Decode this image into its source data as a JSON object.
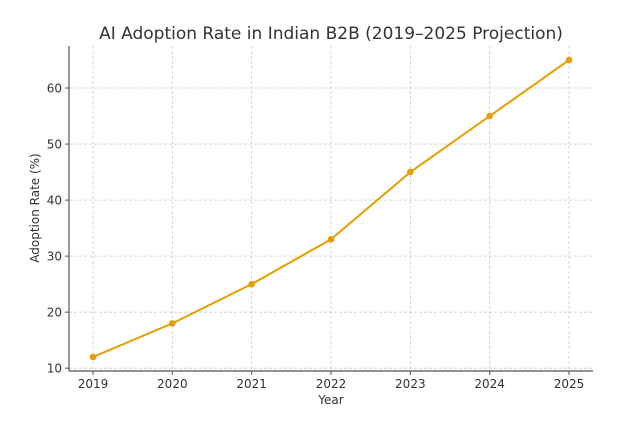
{
  "chart_data": {
    "type": "line",
    "title": "AI Adoption Rate in Indian B2B (2019–2025 Projection)",
    "xlabel": "Year",
    "ylabel": "Adoption Rate (%)",
    "x": [
      "2019",
      "2020",
      "2021",
      "2022",
      "2023",
      "2024",
      "2025"
    ],
    "series": [
      {
        "name": "Adoption Rate",
        "values": [
          12,
          18,
          25,
          33,
          45,
          55,
          65
        ],
        "color": "#E69F00"
      }
    ],
    "yticks": [
      "10",
      "20",
      "30",
      "40",
      "50",
      "60"
    ],
    "ylim": [
      9.5,
      67.5
    ],
    "grid": true,
    "legend": "none",
    "marker": "circle"
  }
}
